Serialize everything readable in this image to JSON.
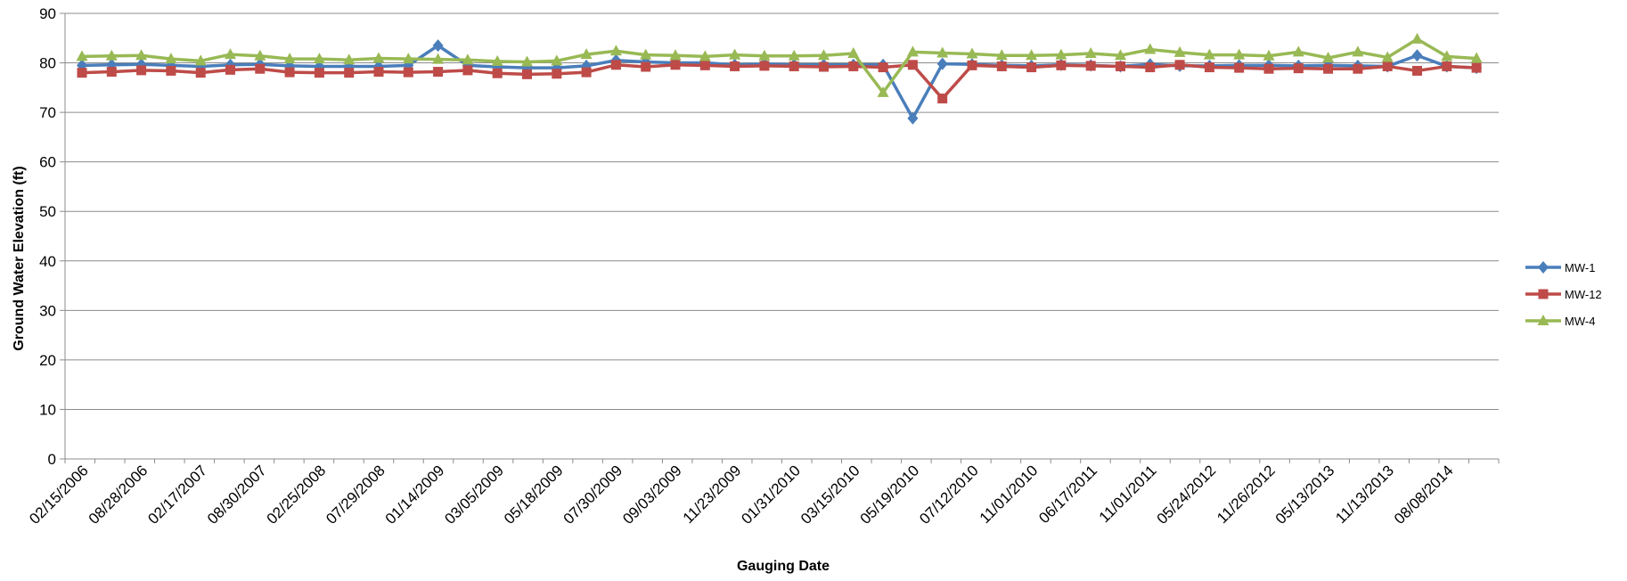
{
  "chart_data": {
    "type": "line",
    "xlabel": "Gauging Date",
    "ylabel": "Ground Water Elevation (ft)",
    "ylim": [
      0,
      90
    ],
    "yticks": [
      0,
      10,
      20,
      30,
      40,
      50,
      60,
      70,
      80,
      90
    ],
    "grid": "horizontal",
    "legend_position": "right",
    "x_tick_labels": [
      "02/15/2006",
      "08/28/2006",
      "02/17/2007",
      "08/30/2007",
      "02/25/2008",
      "07/29/2008",
      "01/14/2009",
      "03/05/2009",
      "05/18/2009",
      "07/30/2009",
      "09/03/2009",
      "11/23/2009",
      "01/31/2010",
      "03/15/2010",
      "05/19/2010",
      "07/12/2010",
      "11/01/2010",
      "06/17/2011",
      "11/01/2011",
      "05/24/2012",
      "11/26/2012",
      "05/13/2013",
      "11/13/2013",
      "08/08/2014"
    ],
    "series": [
      {
        "name": "MW-1",
        "color": "#4a7ebb",
        "marker": "diamond",
        "values": [
          79.5,
          79.6,
          79.7,
          79.5,
          79.3,
          79.6,
          79.7,
          79.4,
          79.3,
          79.3,
          79.3,
          79.5,
          83.5,
          79.5,
          79.2,
          79.0,
          79.0,
          79.4,
          80.5,
          80.2,
          80.0,
          80.0,
          79.6,
          79.8,
          79.6,
          79.6,
          79.6,
          79.6,
          68.8,
          79.8,
          79.7,
          79.5,
          79.4,
          79.6,
          79.5,
          79.3,
          79.7,
          79.4,
          79.4,
          79.5,
          79.5,
          79.4,
          79.5,
          79.4,
          79.3,
          81.5,
          79.3,
          79.0
        ]
      },
      {
        "name": "MW-12",
        "color": "#be4b48",
        "marker": "square",
        "values": [
          78.0,
          78.2,
          78.5,
          78.4,
          78.0,
          78.6,
          78.8,
          78.1,
          78.0,
          78.0,
          78.2,
          78.1,
          78.2,
          78.5,
          77.9,
          77.7,
          77.8,
          78.1,
          79.6,
          79.2,
          79.6,
          79.5,
          79.3,
          79.4,
          79.3,
          79.2,
          79.3,
          79.1,
          79.6,
          72.8,
          79.5,
          79.3,
          79.1,
          79.5,
          79.4,
          79.3,
          79.1,
          79.6,
          79.1,
          79.0,
          78.8,
          78.9,
          78.8,
          78.8,
          79.3,
          78.4,
          79.3,
          79.0
        ]
      },
      {
        "name": "MW-4",
        "color": "#98b954",
        "marker": "triangle",
        "values": [
          81.3,
          81.4,
          81.5,
          80.8,
          80.4,
          81.7,
          81.4,
          80.8,
          80.8,
          80.6,
          80.9,
          80.8,
          80.7,
          80.6,
          80.3,
          80.2,
          80.4,
          81.7,
          82.4,
          81.6,
          81.5,
          81.3,
          81.6,
          81.4,
          81.4,
          81.5,
          81.9,
          74.0,
          82.2,
          82.0,
          81.8,
          81.5,
          81.5,
          81.6,
          81.9,
          81.5,
          82.7,
          82.1,
          81.6,
          81.6,
          81.4,
          82.2,
          81.0,
          82.2,
          81.1,
          84.8,
          81.3,
          80.9
        ]
      }
    ]
  }
}
